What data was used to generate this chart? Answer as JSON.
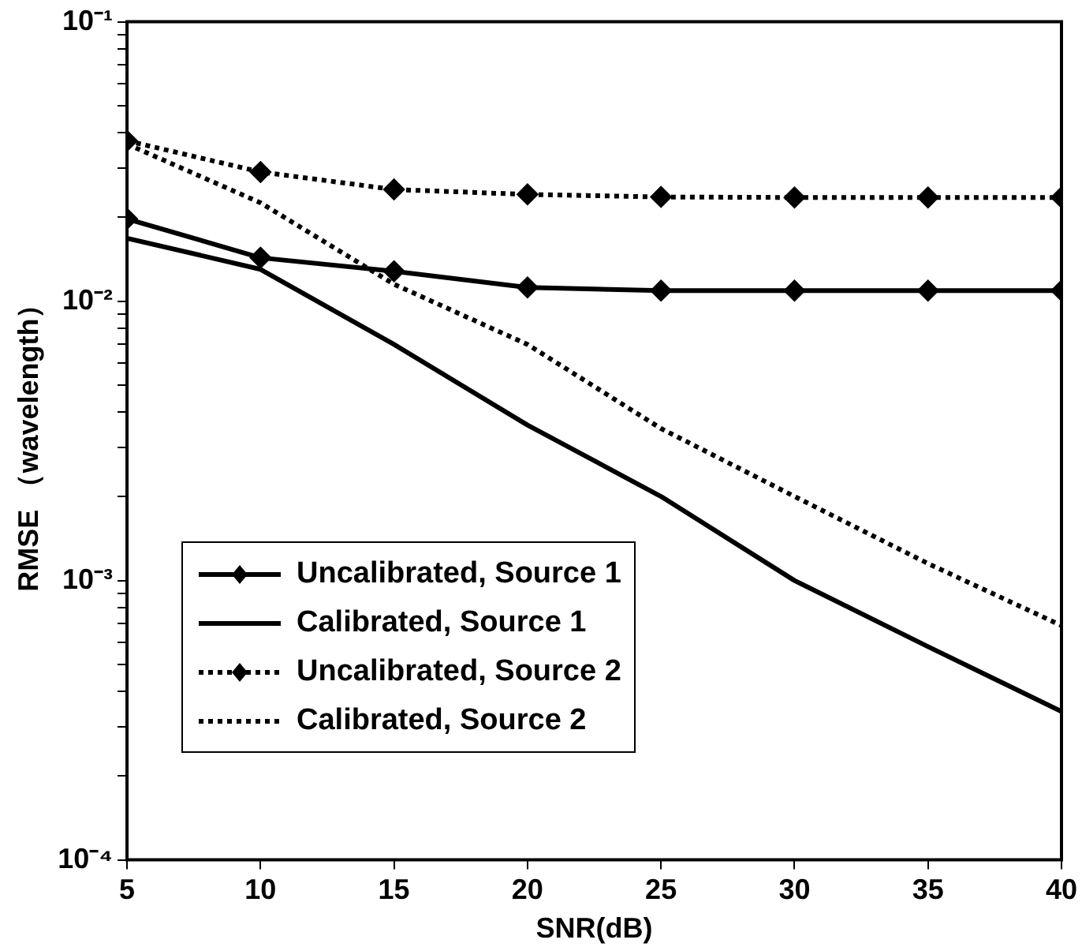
{
  "chart_data": {
    "type": "line",
    "xlabel": "SNR(dB)",
    "ylabel": "RMSE （wavelength）",
    "log": "y",
    "grid": false,
    "legend": "bottom left",
    "x": [
      5,
      10,
      15,
      20,
      25,
      30,
      35,
      40
    ],
    "xlim": [
      5,
      40
    ],
    "xticks": [
      5,
      10,
      15,
      20,
      25,
      30,
      35,
      40
    ],
    "ylim": [
      0.0001,
      0.1
    ],
    "yticks": [
      {
        "value": 0.0001,
        "label": "10⁻⁴"
      },
      {
        "value": 0.0002,
        "label": null
      },
      {
        "value": 0.0003,
        "label": null
      },
      {
        "value": 0.0004,
        "label": null
      },
      {
        "value": 0.0005,
        "label": null
      },
      {
        "value": 0.0006,
        "label": null
      },
      {
        "value": 0.0007,
        "label": null
      },
      {
        "value": 0.0008,
        "label": null
      },
      {
        "value": 0.0009,
        "label": null
      },
      {
        "value": 0.001,
        "label": "10⁻³"
      },
      {
        "value": 0.002,
        "label": null
      },
      {
        "value": 0.003,
        "label": null
      },
      {
        "value": 0.004,
        "label": null
      },
      {
        "value": 0.005,
        "label": null
      },
      {
        "value": 0.006,
        "label": null
      },
      {
        "value": 0.007,
        "label": null
      },
      {
        "value": 0.008,
        "label": null
      },
      {
        "value": 0.009,
        "label": null
      },
      {
        "value": 0.01,
        "label": "10⁻²"
      },
      {
        "value": 0.02,
        "label": null
      },
      {
        "value": 0.03,
        "label": null
      },
      {
        "value": 0.04,
        "label": null
      },
      {
        "value": 0.05,
        "label": null
      },
      {
        "value": 0.06,
        "label": null
      },
      {
        "value": 0.07,
        "label": null
      },
      {
        "value": 0.08,
        "label": null
      },
      {
        "value": 0.09,
        "label": null
      },
      {
        "value": 0.1,
        "label": "10⁻¹"
      }
    ],
    "series": [
      {
        "name": "Uncalibrated, Source 1",
        "color": "#000000",
        "marker": "diamond",
        "line_style": "solid",
        "values": [
          0.0197,
          0.0143,
          0.0128,
          0.0112,
          0.0109,
          0.0109,
          0.0109,
          0.0109
        ]
      },
      {
        "name": "Calibrated, Source 1",
        "color": "#000000",
        "marker": "none",
        "line_style": "solid",
        "values": [
          0.0168,
          0.013,
          0.007,
          0.0036,
          0.002,
          0.001,
          0.00058,
          0.00034
        ]
      },
      {
        "name": "Uncalibrated, Source 2",
        "color": "#000000",
        "marker": "diamond",
        "line_style": "dotted",
        "values": [
          0.0375,
          0.029,
          0.0251,
          0.0241,
          0.0236,
          0.0235,
          0.0235,
          0.0235
        ]
      },
      {
        "name": "Calibrated, Source 2",
        "color": "#000000",
        "marker": "none",
        "line_style": "dotted",
        "values": [
          0.0365,
          0.0225,
          0.0115,
          0.007,
          0.0035,
          0.002,
          0.00115,
          0.00069
        ]
      }
    ]
  }
}
